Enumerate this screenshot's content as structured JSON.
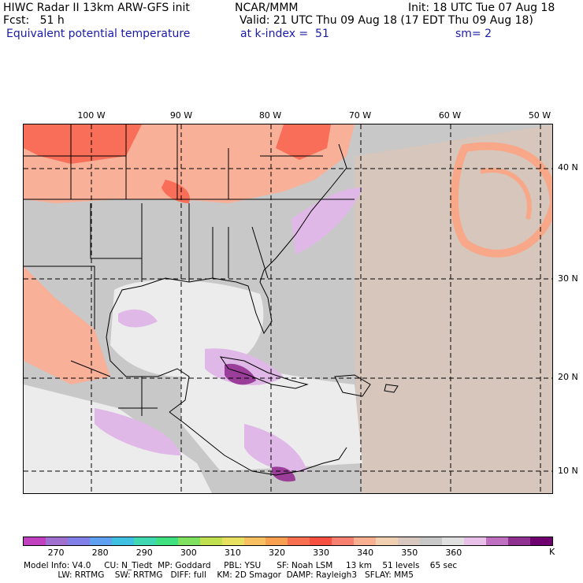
{
  "header": {
    "line1_left": "HIWC Radar II 13km ARW-GFS init",
    "line1_mid": "NCAR/MMM",
    "line1_right": "Init: 18 UTC Tue 07 Aug 18",
    "line2_left": "Fcst:   51 h",
    "line2_right": "Valid: 21 UTC Thu 09 Aug 18 (17 EDT Thu 09 Aug 18)",
    "line3_left": "Equivalent potential temperature",
    "line3_mid": "at k-index =  51",
    "line3_right": "sm= 2"
  },
  "map": {
    "lon_labels": [
      "100 W",
      "90 W",
      "80 W",
      "70 W",
      "60 W",
      "50 W"
    ],
    "lat_labels": [
      "40 N",
      "30 N",
      "20 N",
      "10 N"
    ]
  },
  "colorbar": {
    "colors": [
      "#c040c0",
      "#a070d0",
      "#8080e8",
      "#60a0f0",
      "#40c0e0",
      "#40d8b0",
      "#40e080",
      "#80e060",
      "#c0e050",
      "#e8e060",
      "#f8c060",
      "#f8a050",
      "#f87050",
      "#f85040",
      "#f88070",
      "#f8b090",
      "#f0d0b0",
      "#d8c8c0",
      "#c8c8c8",
      "#e0e0e0",
      "#e8c0e8",
      "#c070c0",
      "#903090",
      "#700070"
    ],
    "labels": [
      "270",
      "280",
      "290",
      "300",
      "310",
      "320",
      "330",
      "340",
      "350",
      "360"
    ],
    "unit": "K"
  },
  "footer": {
    "line1": "Model Info: V4.0     CU: N_Tiedt  MP: Goddard     PBL: YSU      SF: Noah LSM     13 km    51 levels    65 sec",
    "line2": "             LW: RRTMG    SW: RRTMG   DIFF: full    KM: 2D Smagor  DAMP: Rayleigh3   SFLAY: MM5"
  }
}
